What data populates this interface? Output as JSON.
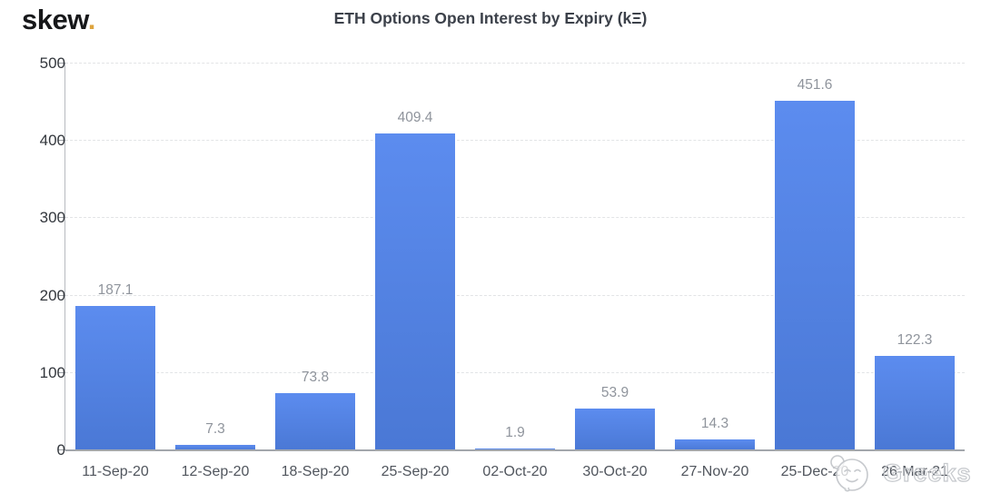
{
  "logo": {
    "text": "skew",
    "dot": "."
  },
  "header": {
    "title": "ETH Options Open Interest by Expiry (kΞ)"
  },
  "watermark": {
    "icon": "smiley-emoji-icon",
    "text": "Greeks"
  },
  "colors": {
    "bar_top": "#5c8cef",
    "bar_bottom": "#4a78d5",
    "logo_dot": "#dea43e",
    "gridline": "#e2e4e6",
    "axis_label": "#50555d",
    "value_label": "#8f949c"
  },
  "chart_data": {
    "type": "bar",
    "title": "ETH Options Open Interest by Expiry (kΞ)",
    "categories": [
      "11-Sep-20",
      "12-Sep-20",
      "18-Sep-20",
      "25-Sep-20",
      "02-Oct-20",
      "30-Oct-20",
      "27-Nov-20",
      "25-Dec-20",
      "26-Mar-21"
    ],
    "values": [
      187.1,
      7.3,
      73.8,
      409.4,
      1.9,
      53.9,
      14.3,
      451.6,
      122.3
    ],
    "value_labels": [
      "187.1",
      "7.3",
      "73.8",
      "409.4",
      "1.9",
      "53.9",
      "14.3",
      "451.6",
      "122.3"
    ],
    "xlabel": "",
    "ylabel": "",
    "ylim": [
      0,
      500
    ],
    "yticks": [
      0,
      100,
      200,
      300,
      400,
      500
    ],
    "grid": "horizontal dashed",
    "legend": "none"
  }
}
